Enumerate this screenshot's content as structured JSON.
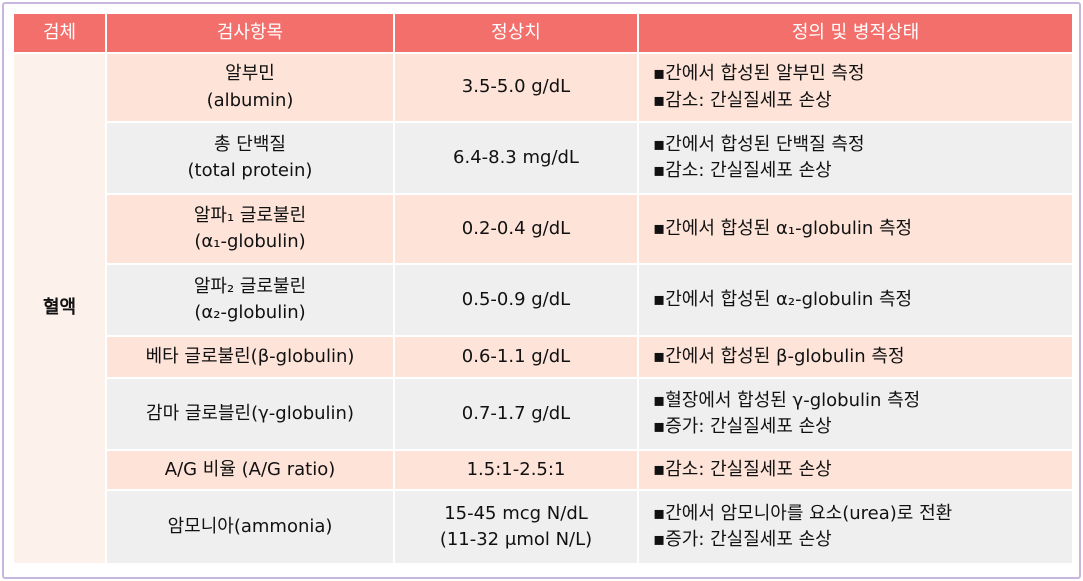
{
  "table": {
    "header": [
      "검체",
      "검사항목",
      "정상치",
      "정의 및 병적상태"
    ],
    "specimen": "혈액",
    "rows": [
      {
        "item": [
          "알부민",
          "(albumin)"
        ],
        "normal": [
          "3.5-5.0 g/dL"
        ],
        "definition": [
          "▪간에서 합성된 알부민 측정",
          "▪감소: 간실질세포 손상"
        ]
      },
      {
        "item": [
          "총 단백질",
          "(total protein)"
        ],
        "normal": [
          "6.4-8.3 mg/dL"
        ],
        "definition": [
          "▪간에서 합성된 단백질 측정",
          "▪감소: 간실질세포 손상"
        ]
      },
      {
        "item": [
          "알파₁ 글로불린",
          "(α₁-globulin)"
        ],
        "normal": [
          "0.2-0.4 g/dL"
        ],
        "definition": [
          "▪간에서 합성된 α₁-globulin 측정"
        ]
      },
      {
        "item": [
          "알파₂ 글로불린",
          "(α₂-globulin)"
        ],
        "normal": [
          "0.5-0.9 g/dL"
        ],
        "definition": [
          "▪간에서 합성된 α₂-globulin 측정"
        ]
      },
      {
        "item": [
          "베타 글로불린(β-globulin)"
        ],
        "normal": [
          "0.6-1.1 g/dL"
        ],
        "definition": [
          "▪간에서 합성된 β-globulin 측정"
        ]
      },
      {
        "item": [
          "감마 글로블린(γ-globulin)"
        ],
        "normal": [
          "0.7-1.7 g/dL"
        ],
        "definition": [
          "▪혈장에서 합성된 γ-globulin 측정",
          "▪증가: 간실질세포 손상"
        ]
      },
      {
        "item": [
          "A/G 비율 (A/G ratio)"
        ],
        "normal": [
          "1.5:1-2.5:1"
        ],
        "definition": [
          "▪감소: 간실질세포 손상"
        ]
      },
      {
        "item": [
          "암모니아(ammonia)"
        ],
        "normal": [
          "15-45 mcg N/dL",
          "(11-32 μmol N/L)"
        ],
        "definition": [
          "▪간에서 암모니아를 요소(urea)로 전환",
          "▪증가: 간실질세포 손상"
        ]
      }
    ]
  }
}
